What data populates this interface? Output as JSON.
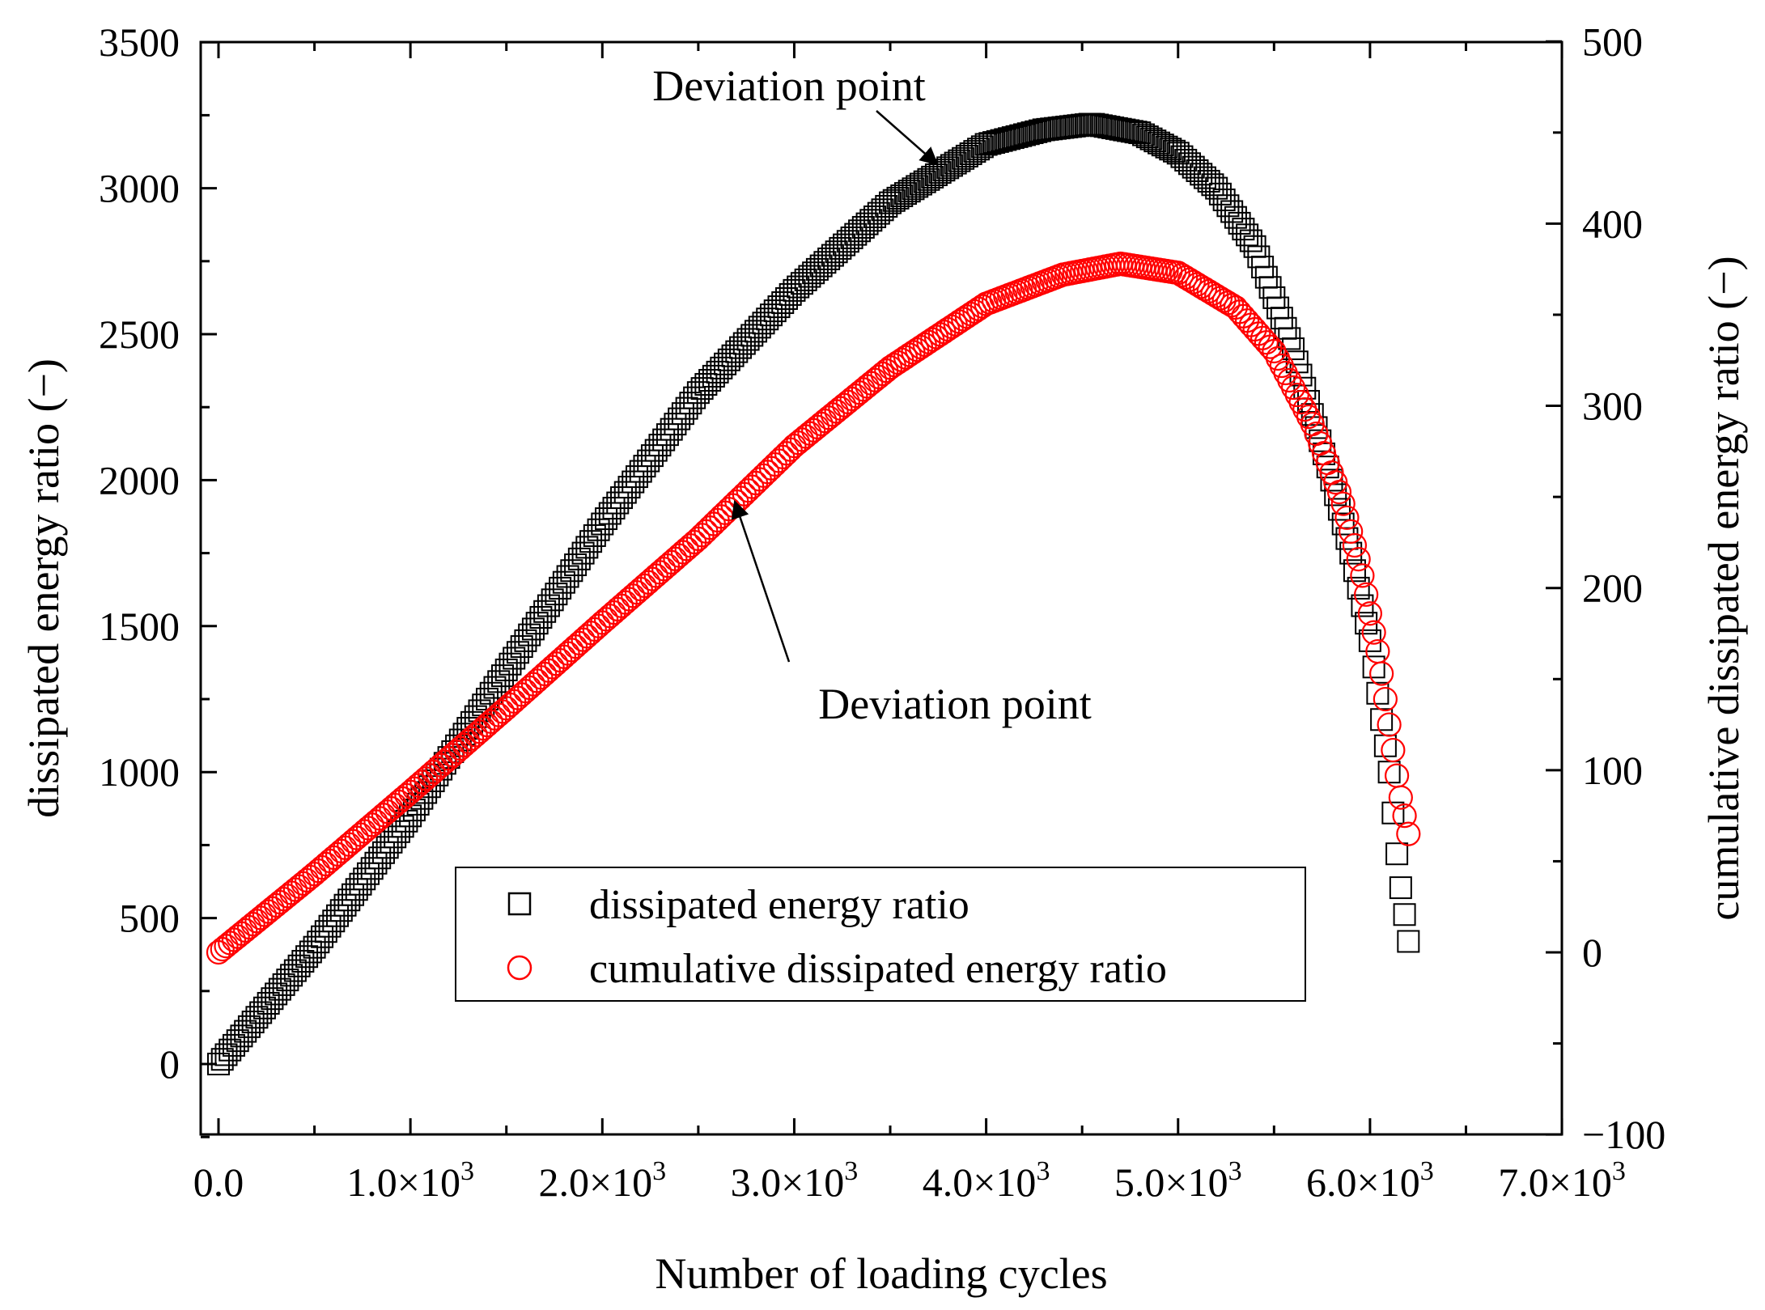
{
  "chart_data": {
    "type": "scatter",
    "xlabel": "Number of loading cycles",
    "ylabel": "dissipated energy ratio (−)",
    "y2label": "cumulative dissipated energy ratio (−)",
    "xlim": [
      -100,
      7000
    ],
    "ylim": [
      -250,
      3500
    ],
    "y2lim": [
      -100,
      500
    ],
    "x_ticks": [
      {
        "value": 0,
        "label": "0.0"
      },
      {
        "value": 1000,
        "label": "1.0×10",
        "sup": "3"
      },
      {
        "value": 2000,
        "label": "2.0×10",
        "sup": "3"
      },
      {
        "value": 3000,
        "label": "3.0×10",
        "sup": "3"
      },
      {
        "value": 4000,
        "label": "4.0×10",
        "sup": "3"
      },
      {
        "value": 5000,
        "label": "5.0×10",
        "sup": "3"
      },
      {
        "value": 6000,
        "label": "6.0×10",
        "sup": "3"
      },
      {
        "value": 7000,
        "label": "7.0×10",
        "sup": "3"
      }
    ],
    "y_ticks": [
      "0",
      "500",
      "1000",
      "1500",
      "2000",
      "2500",
      "3000",
      "3500"
    ],
    "y2_ticks": [
      "−100",
      "0",
      "100",
      "200",
      "300",
      "400",
      "500"
    ],
    "series": [
      {
        "name": "dissipated energy ratio",
        "axis": "left",
        "marker": "square",
        "color": "#000000",
        "x": [
          0,
          500,
          1000,
          1500,
          2000,
          2500,
          3000,
          3500,
          4000,
          4300,
          4550,
          4800,
          5000,
          5200,
          5400,
          5600,
          5800,
          5900,
          6000,
          6100,
          6150,
          6200
        ],
        "y": [
          0,
          400,
          850,
          1350,
          1850,
          2300,
          2650,
          2950,
          3150,
          3200,
          3220,
          3190,
          3120,
          3000,
          2800,
          2450,
          2000,
          1750,
          1450,
          1000,
          650,
          420
        ]
      },
      {
        "name": "cumulative dissipated energy ratio",
        "axis": "right",
        "marker": "circle",
        "color": "#ff0000",
        "x": [
          0,
          500,
          1000,
          1500,
          2000,
          2500,
          3000,
          3500,
          4000,
          4400,
          4700,
          5000,
          5300,
          5500,
          5700,
          5850,
          5950,
          6050,
          6100,
          6150,
          6200
        ],
        "y": [
          0,
          43,
          88,
          134,
          181,
          227,
          278,
          321,
          356,
          372,
          378,
          373,
          354,
          330,
          290,
          250,
          212,
          160,
          125,
          90,
          65
        ]
      }
    ],
    "annotations": [
      {
        "text": "Deviation point",
        "arrow_to_series": "dissipated energy ratio",
        "arrow_to": [
          3750,
          3050
        ]
      },
      {
        "text": "Deviation point",
        "arrow_to_series": "cumulative dissipated energy ratio",
        "arrow_to": [
          2700,
          252
        ]
      }
    ],
    "legend": {
      "position": "bottom-center",
      "frame": true
    },
    "grid": false
  }
}
